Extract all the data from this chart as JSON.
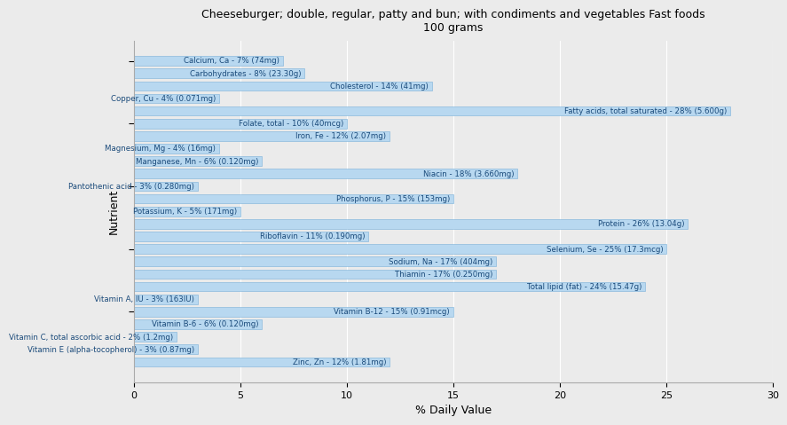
{
  "title": "Cheeseburger; double, regular, patty and bun; with condiments and vegetables Fast foods\n100 grams",
  "xlabel": "% Daily Value",
  "ylabel": "Nutrient",
  "xlim": [
    0,
    30
  ],
  "bar_color": "#b8d8f0",
  "bar_edge_color": "#7ab0d8",
  "background_color": "#ebebeb",
  "text_color": "#1a4a7a",
  "nutrients": [
    {
      "label": "Calcium, Ca - 7% (74mg)",
      "value": 7
    },
    {
      "label": "Carbohydrates - 8% (23.30g)",
      "value": 8
    },
    {
      "label": "Cholesterol - 14% (41mg)",
      "value": 14
    },
    {
      "label": "Copper, Cu - 4% (0.071mg)",
      "value": 4
    },
    {
      "label": "Fatty acids, total saturated - 28% (5.600g)",
      "value": 28
    },
    {
      "label": "Folate, total - 10% (40mcg)",
      "value": 10
    },
    {
      "label": "Iron, Fe - 12% (2.07mg)",
      "value": 12
    },
    {
      "label": "Magnesium, Mg - 4% (16mg)",
      "value": 4
    },
    {
      "label": "Manganese, Mn - 6% (0.120mg)",
      "value": 6
    },
    {
      "label": "Niacin - 18% (3.660mg)",
      "value": 18
    },
    {
      "label": "Pantothenic acid - 3% (0.280mg)",
      "value": 3
    },
    {
      "label": "Phosphorus, P - 15% (153mg)",
      "value": 15
    },
    {
      "label": "Potassium, K - 5% (171mg)",
      "value": 5
    },
    {
      "label": "Protein - 26% (13.04g)",
      "value": 26
    },
    {
      "label": "Riboflavin - 11% (0.190mg)",
      "value": 11
    },
    {
      "label": "Selenium, Se - 25% (17.3mcg)",
      "value": 25
    },
    {
      "label": "Sodium, Na - 17% (404mg)",
      "value": 17
    },
    {
      "label": "Thiamin - 17% (0.250mg)",
      "value": 17
    },
    {
      "label": "Total lipid (fat) - 24% (15.47g)",
      "value": 24
    },
    {
      "label": "Vitamin A, IU - 3% (163IU)",
      "value": 3
    },
    {
      "label": "Vitamin B-12 - 15% (0.91mcg)",
      "value": 15
    },
    {
      "label": "Vitamin B-6 - 6% (0.120mg)",
      "value": 6
    },
    {
      "label": "Vitamin C, total ascorbic acid - 2% (1.2mg)",
      "value": 2
    },
    {
      "label": "Vitamin E (alpha-tocopherol) - 3% (0.87mg)",
      "value": 3
    },
    {
      "label": "Zinc, Zn - 12% (1.81mg)",
      "value": 12
    }
  ],
  "ytick_positions": [
    4.5,
    9.5,
    14.5,
    19.5,
    24.5
  ]
}
